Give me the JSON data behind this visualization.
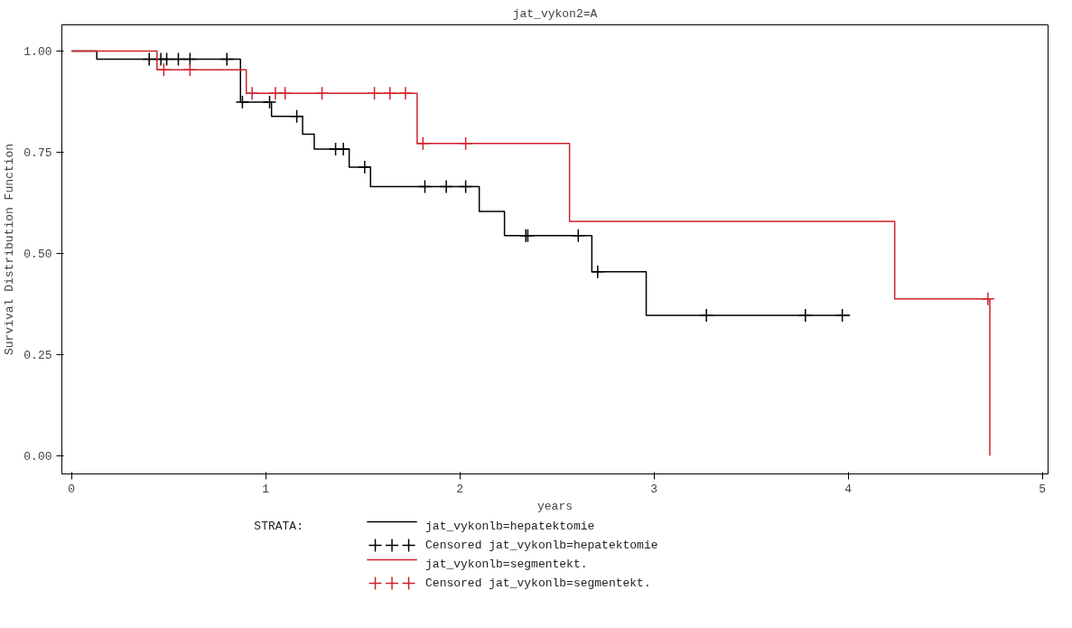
{
  "chart_data": {
    "type": "step",
    "title": "jat_vykon2=A",
    "xlabel": "years",
    "ylabel": "Survival Distribution Function",
    "legend_title": "STRATA:",
    "legend": "bottom",
    "grid": false,
    "xlim": [
      -0.05,
      5.03
    ],
    "ylim": [
      -0.045,
      1.065
    ],
    "xticks": [
      0,
      1,
      2,
      3,
      4,
      5
    ],
    "yticks": [
      {
        "value": 0,
        "label": "0.00"
      },
      {
        "value": 0.25,
        "label": "0.25"
      },
      {
        "value": 0.5,
        "label": "0.50"
      },
      {
        "value": 0.75,
        "label": "0.75"
      },
      {
        "value": 1,
        "label": "1.00"
      }
    ],
    "series": [
      {
        "name": "jat_vykonlb=hepatektomie",
        "color": "#000000",
        "x": [
          0,
          0.13,
          0.87,
          1.03,
          1.19,
          1.25,
          1.43,
          1.54,
          2.1,
          2.23,
          2.68,
          2.96,
          4.01
        ],
        "values": [
          1,
          0.98,
          0.874,
          0.839,
          0.795,
          0.758,
          0.713,
          0.665,
          0.604,
          0.544,
          0.455,
          0.347,
          0.347
        ]
      },
      {
        "name": "Censored jat_vykonlb=hepatektomie",
        "type": "scatter",
        "marker": "cross",
        "color": "#000000",
        "x": [
          0.4,
          0.46,
          0.49,
          0.55,
          0.61,
          0.8,
          0.88,
          1.02,
          1.16,
          1.36,
          1.4,
          1.51,
          1.82,
          1.93,
          2.03,
          2.34,
          2.35,
          2.61,
          2.71,
          3.27,
          3.78,
          3.97
        ],
        "values": [
          0.98,
          0.98,
          0.98,
          0.98,
          0.98,
          0.98,
          0.874,
          0.874,
          0.839,
          0.758,
          0.758,
          0.713,
          0.665,
          0.665,
          0.665,
          0.544,
          0.544,
          0.544,
          0.455,
          0.347,
          0.347,
          0.347
        ]
      },
      {
        "name": "jat_vykonlb=segmentekt.",
        "color": "#d0202a",
        "x": [
          0,
          0.44,
          0.9,
          1.78,
          2.565,
          4.24,
          4.73
        ],
        "values": [
          1,
          0.954,
          0.896,
          0.772,
          0.579,
          0.388,
          0
        ]
      },
      {
        "name": "Censored jat_vykonlb=segmentekt.",
        "type": "scatter",
        "marker": "cross",
        "color": "#d0202a",
        "x": [
          0.475,
          0.61,
          0.93,
          1.05,
          1.1,
          1.29,
          1.56,
          1.64,
          1.72,
          1.81,
          2.03,
          4.72
        ],
        "values": [
          0.954,
          0.954,
          0.896,
          0.896,
          0.896,
          0.896,
          0.896,
          0.896,
          0.896,
          0.772,
          0.772,
          0.388
        ]
      }
    ]
  }
}
